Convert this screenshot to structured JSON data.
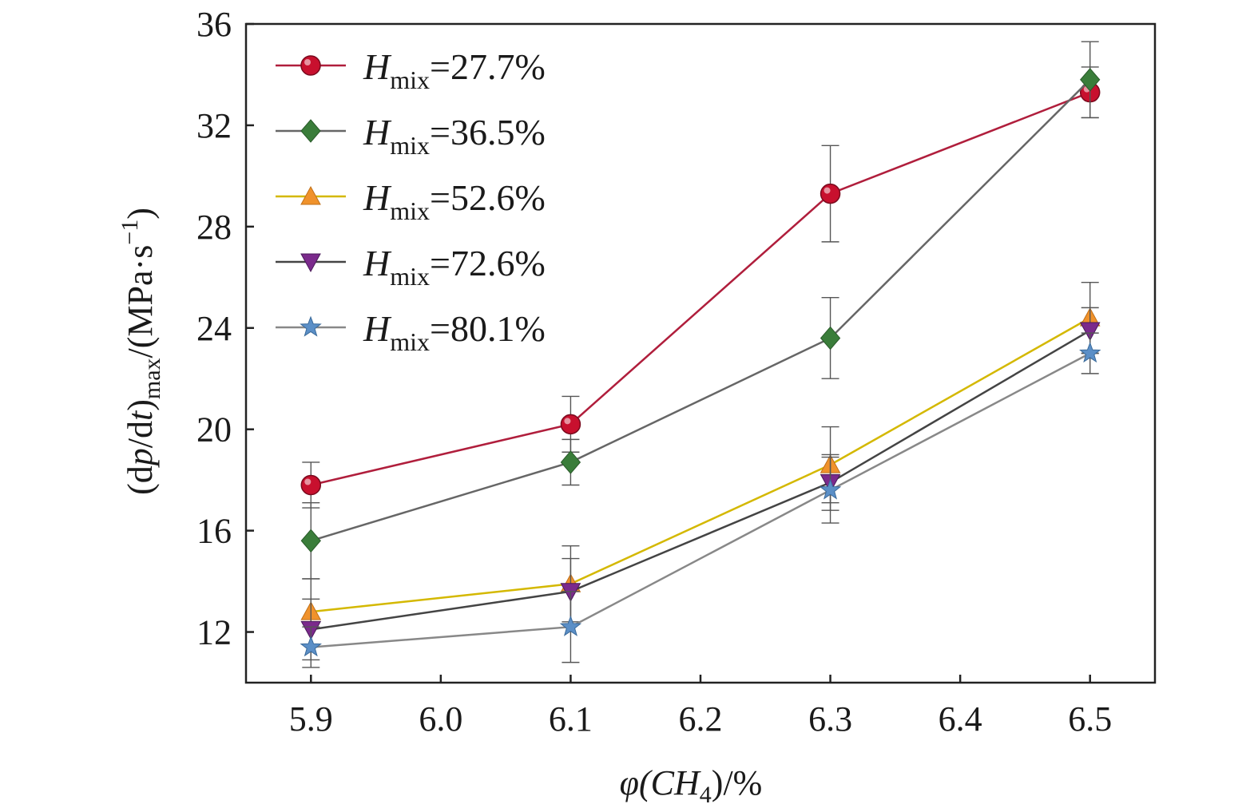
{
  "chart_data": {
    "type": "line",
    "xlabel": {
      "prefix": "φ(CH",
      "sub": "4",
      "suffix": ")/%"
    },
    "ylabel": {
      "part1": "(d",
      "italic1": "p",
      "part2": "/d",
      "italic2": "t",
      "part3": ")",
      "sub": "max",
      "part4": "/(MPa·s",
      "sup": "−1",
      "part5": ")"
    },
    "x": [
      5.9,
      6.1,
      6.3,
      6.5
    ],
    "xlim": [
      5.85,
      6.55
    ],
    "ylim": [
      10,
      36
    ],
    "xticks": [
      "5.9",
      "6.0",
      "6.1",
      "6.2",
      "6.3",
      "6.4",
      "6.5"
    ],
    "yticks": [
      "12",
      "16",
      "20",
      "24",
      "28",
      "32",
      "36"
    ],
    "legend_position": "top-left",
    "grid": false,
    "series": [
      {
        "name": "H",
        "sub": "mix",
        "value_text": "=27.7%",
        "marker": "circle-icon",
        "line_color": "#b01e3c",
        "marker_color": "#c8102e",
        "values": [
          17.8,
          20.2,
          29.3,
          33.3
        ],
        "errors": [
          0.9,
          1.1,
          1.9,
          1.0
        ]
      },
      {
        "name": "H",
        "sub": "mix",
        "value_text": "=36.5%",
        "marker": "diamond-icon",
        "line_color": "#666666",
        "marker_color": "#3a7d3a",
        "values": [
          15.6,
          18.7,
          23.6,
          33.8
        ],
        "errors": [
          1.5,
          0.9,
          1.6,
          1.5
        ]
      },
      {
        "name": "H",
        "sub": "mix",
        "value_text": "=52.6%",
        "marker": "triangle-up-icon",
        "line_color": "#d4b800",
        "marker_color": "#f0922b",
        "values": [
          12.8,
          13.9,
          18.6,
          24.4
        ],
        "errors": [
          1.3,
          1.5,
          1.5,
          1.4
        ]
      },
      {
        "name": "H",
        "sub": "mix",
        "value_text": "=72.6%",
        "marker": "triangle-down-icon",
        "line_color": "#444444",
        "marker_color": "#7b2a8c",
        "values": [
          12.1,
          13.6,
          17.9,
          23.9
        ],
        "errors": [
          1.2,
          1.3,
          1.1,
          0.9
        ]
      },
      {
        "name": "H",
        "sub": "mix",
        "value_text": "=80.1%",
        "marker": "star-icon",
        "line_color": "#888888",
        "marker_color": "#5b8fc7",
        "values": [
          11.4,
          12.2,
          17.6,
          23.0
        ],
        "errors": [
          0.8,
          1.4,
          1.3,
          0.8
        ]
      }
    ]
  }
}
